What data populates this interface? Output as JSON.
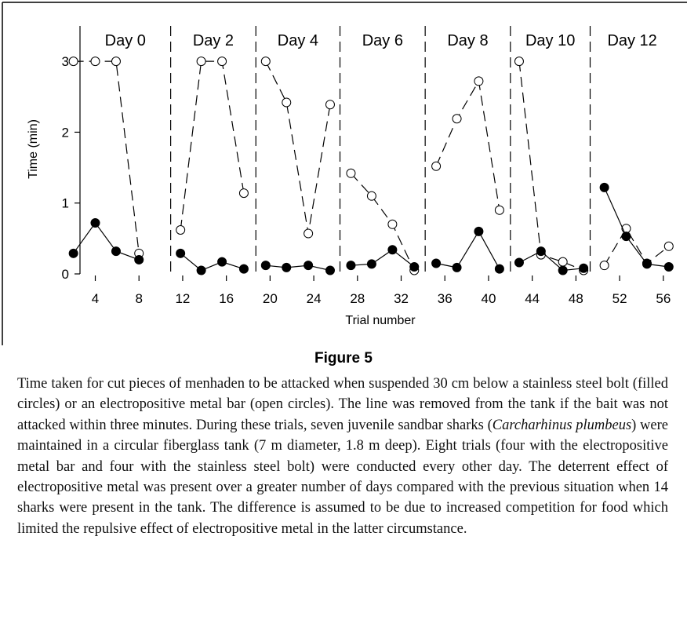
{
  "chart_data": {
    "type": "line",
    "xlabel": "Trial number",
    "ylabel": "Time (min)",
    "xlim": [
      2.6,
      57
    ],
    "ylim": [
      0,
      3.5
    ],
    "xticks": [
      4,
      8,
      12,
      16,
      20,
      24,
      28,
      32,
      36,
      40,
      44,
      48,
      52,
      56
    ],
    "yticks": [
      0,
      1,
      2,
      3
    ],
    "day_labels": [
      "Day 0",
      "Day 2",
      "Day 4",
      "Day 6",
      "Day 8",
      "Day 10",
      "Day 12"
    ],
    "day_dividers": [
      10.9,
      18.7,
      26.4,
      34.2,
      42.0,
      49.3
    ],
    "x": [
      2,
      4,
      5.9,
      8,
      null,
      11.8,
      13.7,
      15.6,
      17.6,
      null,
      19.6,
      21.5,
      23.5,
      25.5,
      null,
      27.4,
      29.3,
      31.2,
      33.2,
      null,
      35.2,
      37.1,
      39.1,
      41.0,
      null,
      42.8,
      44.8,
      46.8,
      48.7,
      null,
      50.6,
      52.6,
      54.5,
      56.5
    ],
    "series": [
      {
        "color": "#000000",
        "marker": "open",
        "dashed": true,
        "values": [
          3,
          3,
          3,
          0.29,
          null,
          0.62,
          3,
          3,
          1.14,
          null,
          3,
          2.42,
          0.57,
          2.39,
          null,
          1.42,
          1.1,
          0.7,
          0.05,
          null,
          1.52,
          2.19,
          2.72,
          0.9,
          null,
          3,
          0.27,
          0.17,
          0.05,
          null,
          0.12,
          0.64,
          0.15,
          0.39
        ]
      },
      {
        "color": "#000000",
        "marker": "filled",
        "dashed": false,
        "values": [
          0.29,
          0.72,
          0.32,
          0.2,
          null,
          0.29,
          0.05,
          0.17,
          0.07,
          null,
          0.12,
          0.09,
          0.12,
          0.05,
          null,
          0.12,
          0.14,
          0.34,
          0.1,
          null,
          0.15,
          0.09,
          0.6,
          0.07,
          null,
          0.16,
          0.32,
          0.05,
          0.08,
          null,
          1.22,
          0.53,
          0.14,
          0.1
        ]
      }
    ]
  },
  "caption": {
    "label": "Figure 5",
    "text": [
      "Time taken for cut pieces of menhaden to be attacked when suspended 30 cm below a stainless steel bolt (filled circles) or an electropositive metal bar (open circles). The line was removed from the tank if the bait was not attacked within three minutes. During these trials, seven juvenile sandbar sharks (",
      "Carcharhinus plumbeus",
      ") were maintained in a circular fiberglass tank (7 m diameter, 1.8 m deep). Eight trials (four with the electropositive metal bar and four with the stainless steel bolt) were conducted every other day. The deterrent effect of electropositive metal was present over a greater number of days compared with the previous situation when 14 sharks were present in the tank. The difference is assumed to be due to increased competition for food which limited the repulsive effect of electropositive metal in the latter circumstance."
    ]
  }
}
